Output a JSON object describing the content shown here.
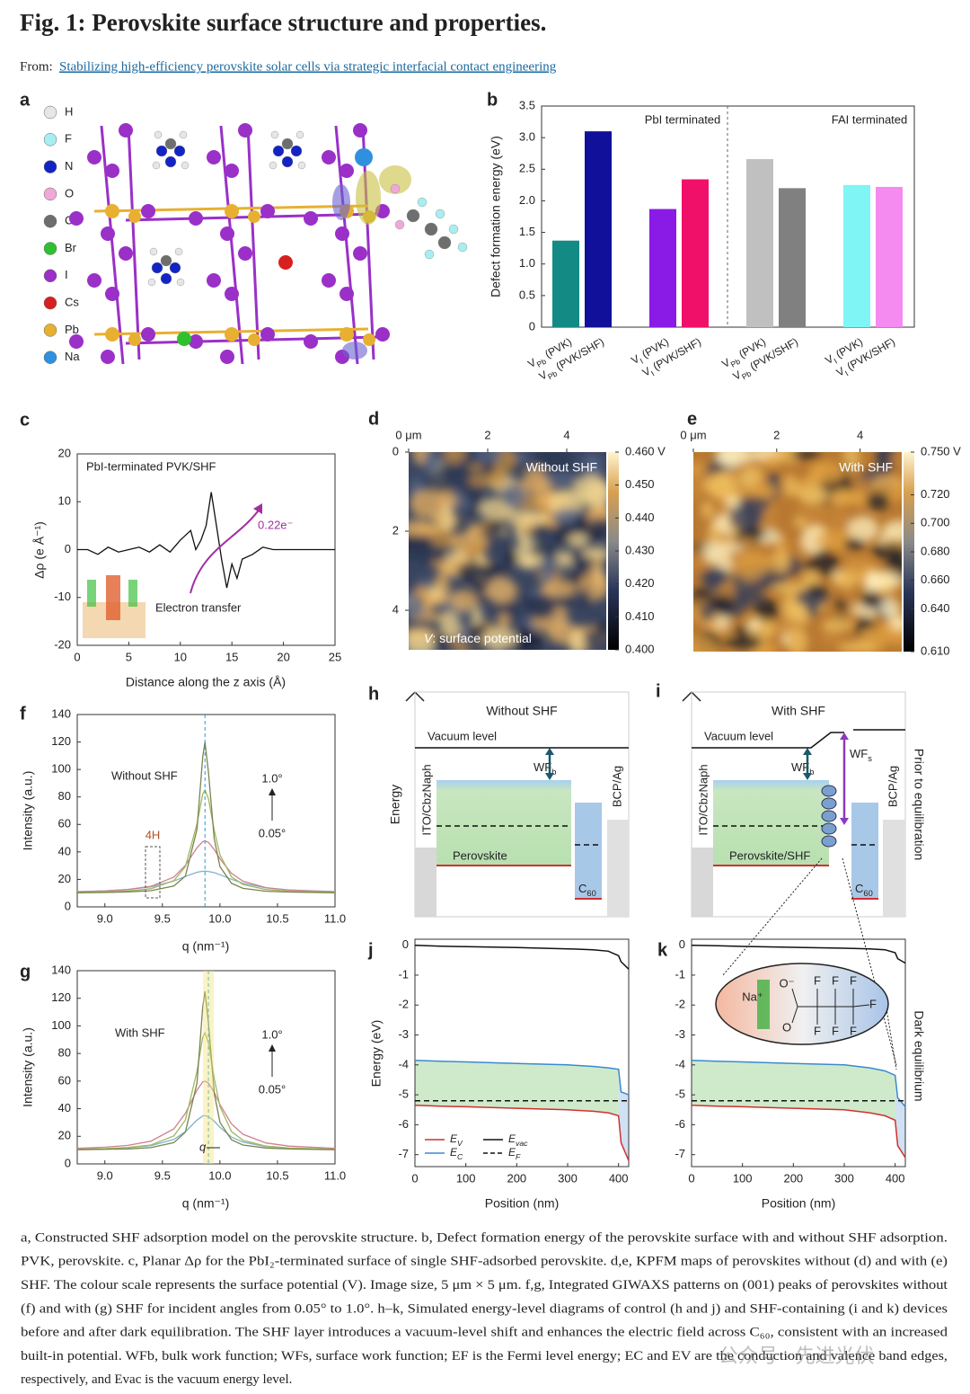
{
  "header": {
    "title": "Fig. 1: Perovskite surface structure and properties.",
    "from": "From:",
    "link": "Stabilizing high-efficiency perovskite solar cells via strategic interfacial contact engineering"
  },
  "panel_a": {
    "label": "a",
    "legend": [
      {
        "name": "H",
        "color": "#e6e6e6"
      },
      {
        "name": "F",
        "color": "#a8eef0"
      },
      {
        "name": "N",
        "color": "#1424c4"
      },
      {
        "name": "O",
        "color": "#f0a8d8"
      },
      {
        "name": "C",
        "color": "#6e6e6e"
      },
      {
        "name": "Br",
        "color": "#2fc02f"
      },
      {
        "name": "I",
        "color": "#9a30c8"
      },
      {
        "name": "Cs",
        "color": "#d82020"
      },
      {
        "name": "Pb",
        "color": "#e8b030"
      },
      {
        "name": "Na",
        "color": "#3090e0"
      }
    ]
  },
  "panel_b": {
    "label": "b",
    "type": "bar",
    "y_label": "Defect formation energy (eV)",
    "ylim": [
      0,
      3.5
    ],
    "yticks": [
      0,
      0.5,
      {
        "value": 1,
        "label": "1.0"
      },
      1.5,
      {
        "value": 2,
        "label": "2.0"
      },
      2.5,
      {
        "value": 3,
        "label": "3.0"
      },
      3.5
    ],
    "groups": [
      "PbI terminated",
      "FAI terminated"
    ],
    "categories": [
      {
        "symbol": "V",
        "sub": "Pb",
        "text": " (PVK)"
      },
      {
        "symbol": "V",
        "sub": "Pb",
        "text": " (PVK/SHF)"
      },
      {
        "symbol": "V",
        "sub": "I",
        "text": " (PVK)"
      },
      {
        "symbol": "V",
        "sub": "I",
        "text": " (PVK/SHF)"
      },
      {
        "symbol": "V",
        "sub": "Pb",
        "text": " (PVK)"
      },
      {
        "symbol": "V",
        "sub": "Pb",
        "text": " (PVK/SHF)"
      },
      {
        "symbol": "V",
        "sub": "I",
        "text": " (PVK)"
      },
      {
        "symbol": "V",
        "sub": "I",
        "text": " (PVK/SHF)"
      }
    ],
    "values": [
      1.37,
      3.1,
      1.87,
      2.34,
      2.66,
      2.2,
      2.25,
      2.22
    ],
    "colors": [
      "#138a84",
      "#10109a",
      "#8a1ae6",
      "#f0106a",
      "#c0c0c0",
      "#808080",
      "#7ff5f5",
      "#f58af0"
    ]
  },
  "panel_c": {
    "label": "c",
    "type": "line",
    "annotation": "PbI-terminated PVK/SHF",
    "charge": "0.22e⁻",
    "process": "Electron transfer",
    "x_label": "Distance along the z axis (Å)",
    "y_label": "Δρ (e Å⁻¹)",
    "xlim": [
      0,
      25
    ],
    "xticks": [
      0,
      5,
      10,
      15,
      20,
      25
    ],
    "ylim": [
      -20,
      20
    ],
    "yticks": [
      -20,
      -10,
      0,
      10,
      20
    ],
    "x": [
      0,
      1,
      2,
      3,
      4,
      5,
      6,
      7,
      8,
      9,
      10,
      11,
      11.5,
      12,
      12.5,
      13,
      13.5,
      14,
      14.5,
      15,
      15.5,
      16,
      17,
      18,
      19,
      20,
      22,
      25
    ],
    "values": [
      0,
      0,
      -1,
      0.5,
      -0.5,
      0,
      0.5,
      -0.5,
      1,
      -0.5,
      2,
      4,
      0,
      2,
      5,
      12,
      5,
      -2,
      -8,
      -3,
      -6,
      -2,
      -1,
      0.5,
      0,
      0,
      0,
      0
    ]
  },
  "panel_d": {
    "label": "d",
    "map_label": "Without SHF",
    "symbol": "V",
    "quantity": ": surface potential",
    "xlim": [
      0,
      5
    ],
    "xticks": [
      {
        "value": 0,
        "label": "0 μm"
      },
      2,
      4
    ],
    "ylim": [
      0,
      5
    ],
    "yticks": [
      0,
      2,
      4
    ],
    "clim": [
      0.4,
      0.46
    ],
    "cticks": [
      {
        "value": 0.46,
        "label": "0.460 V"
      },
      {
        "value": 0.45,
        "label": "0.450"
      },
      {
        "value": 0.44,
        "label": "0.440"
      },
      {
        "value": 0.43,
        "label": "0.430"
      },
      {
        "value": 0.42,
        "label": "0.420"
      },
      {
        "value": 0.41,
        "label": "0.410"
      },
      {
        "value": 0.4,
        "label": "0.400"
      }
    ]
  },
  "panel_e": {
    "label": "e",
    "map_label": "With SHF",
    "xlim": [
      0,
      5
    ],
    "xticks": [
      {
        "value": 0,
        "label": "0 μm"
      },
      2,
      4
    ],
    "clim": [
      0.61,
      0.75
    ],
    "cticks": [
      {
        "value": 0.75,
        "label": "0.750 V"
      },
      {
        "value": 0.72,
        "label": "0.720"
      },
      {
        "value": 0.7,
        "label": "0.700"
      },
      {
        "value": 0.68,
        "label": "0.680"
      },
      {
        "value": 0.66,
        "label": "0.660"
      },
      {
        "value": 0.64,
        "label": "0.640"
      },
      {
        "value": 0.61,
        "label": "0.610"
      }
    ]
  },
  "panel_f": {
    "label": "f",
    "type": "line",
    "sample": "Without SHF",
    "angle_high": "1.0°",
    "angle_low": "0.05°",
    "phase": "4H",
    "x_label": "q (nm⁻¹)",
    "y_label": "Intensity (a.u.)",
    "peak_q": 9.87,
    "xlim": [
      8.76,
      11.0
    ],
    "xticks": [
      {
        "value": 9,
        "label": "9.0"
      },
      9.5,
      {
        "value": 10,
        "label": "10.0"
      },
      10.5,
      {
        "value": 11,
        "label": "11.0"
      }
    ],
    "ylim": [
      0,
      140
    ],
    "yticks": [
      0,
      20,
      40,
      60,
      80,
      100,
      120,
      140
    ],
    "x": [
      8.76,
      9.0,
      9.2,
      9.4,
      9.6,
      9.7,
      9.8,
      9.85,
      9.87,
      9.9,
      9.95,
      10.0,
      10.1,
      10.2,
      10.4,
      10.6,
      11.0
    ],
    "series": [
      {
        "color": "#7fb3d0",
        "values": [
          11.1,
          11.7,
          12.7,
          14.6,
          18.8,
          22.1,
          25.2,
          25.9,
          26,
          25.8,
          24.9,
          23.4,
          20.1,
          17.2,
          13.9,
          12.3,
          11.1
        ]
      },
      {
        "color": "#d08090",
        "values": [
          11,
          11.6,
          12.6,
          14.9,
          21.7,
          30.2,
          43,
          47.5,
          48,
          46.9,
          41.8,
          35,
          24.4,
          18.7,
          14,
          12.2,
          11
        ]
      },
      {
        "color": "#a0b860",
        "values": [
          10.6,
          11,
          11.6,
          13.2,
          19.1,
          29.3,
          60.3,
          82.1,
          85,
          78.8,
          55.8,
          37.9,
          21.9,
          16.3,
          12.6,
          11.4,
          10.6
        ]
      },
      {
        "color": "#7a8450",
        "values": [
          10.3,
          10.5,
          10.9,
          11.8,
          15.2,
          22.4,
          56.4,
          109,
          120,
          98,
          49.6,
          29.3,
          17.2,
          13.5,
          11.4,
          10.8,
          10.3
        ]
      }
    ]
  },
  "panel_g": {
    "label": "g",
    "type": "line",
    "sample": "With SHF",
    "angle_high": "1.0°",
    "angle_low": "0.05°",
    "shift": "q",
    "x_label": "q (nm⁻¹)",
    "y_label": "Intensity (a.u.)",
    "peak_q": 9.9,
    "xlim": [
      8.76,
      11.0
    ],
    "xticks": [
      {
        "value": 9,
        "label": "9.0"
      },
      9.5,
      {
        "value": 10,
        "label": "10.0"
      },
      10.5,
      {
        "value": 11,
        "label": "11.0"
      }
    ],
    "ylim": [
      0,
      140
    ],
    "yticks": [
      0,
      20,
      40,
      60,
      80,
      100,
      120,
      140
    ],
    "x": [
      8.76,
      9.0,
      9.2,
      9.4,
      9.6,
      9.7,
      9.8,
      9.85,
      9.87,
      9.9,
      9.95,
      10.0,
      10.1,
      10.2,
      10.4,
      10.6,
      11.0
    ],
    "series": [
      {
        "color": "#7fb3d0",
        "values": [
          10.6,
          11,
          11.7,
          13.2,
          17.7,
          23.3,
          31.7,
          34.7,
          35,
          34.3,
          31,
          26.5,
          19.5,
          15.8,
          12.6,
          11.4,
          10.6
        ]
      },
      {
        "color": "#d08090",
        "values": [
          11.3,
          12.1,
          13.4,
          16.5,
          25.4,
          36.6,
          53.4,
          59.4,
          60,
          58.6,
          51.9,
          43,
          29,
          21.5,
          15.2,
          12.9,
          11.3
        ]
      },
      {
        "color": "#a0b860",
        "values": [
          10.7,
          11.1,
          11.9,
          13.7,
          20.3,
          31.8,
          67,
          91.8,
          95,
          87.9,
          61.9,
          41.6,
          23.5,
          17.1,
          12.9,
          11.5,
          10.7
        ]
      },
      {
        "color": "#7a8450",
        "values": [
          10.3,
          10.6,
          10.9,
          11.8,
          15.4,
          23,
          58.5,
          113.5,
          125,
          102,
          51.4,
          30.1,
          17.5,
          13.7,
          11.5,
          10.8,
          10.3
        ]
      }
    ]
  },
  "panel_h": {
    "label": "h",
    "title": "Without SHF",
    "vacuum": "Vacuum level",
    "wf": {
      "main": "WF",
      "sub": "b"
    },
    "y_label": "Energy",
    "left": "ITO/CbzNaph",
    "absorber": "Perovskite",
    "etl": {
      "main": "C",
      "sub": "60"
    },
    "right": "BCP/Ag"
  },
  "panel_i": {
    "label": "i",
    "title": "With SHF",
    "vacuum": "Vacuum level",
    "wf_bulk": {
      "main": "WF",
      "sub": "b"
    },
    "wf_surface": {
      "main": "WF",
      "sub": "s"
    },
    "left": "ITO/CbzNaph",
    "absorber": "Perovskite/SHF",
    "etl": {
      "main": "C",
      "sub": "60"
    },
    "right": "BCP/Ag",
    "side": "Prior to equilibration"
  },
  "panel_j": {
    "label": "j",
    "type": "line",
    "x_label": "Position (nm)",
    "y_label": "Energy (eV)",
    "xlim": [
      0,
      420
    ],
    "xticks": [
      0,
      100,
      200,
      300,
      400
    ],
    "ylim": [
      -7.4,
      0.2
    ],
    "yticks": [
      0,
      -1,
      -2,
      -3,
      -4,
      -5,
      -6,
      -7
    ],
    "x": [
      0,
      50,
      100,
      200,
      300,
      350,
      380,
      400,
      405,
      420
    ],
    "series": [
      {
        "name": "E",
        "sub": "V",
        "color": "#d03030",
        "values": [
          -5.35,
          -5.38,
          -5.4,
          -5.45,
          -5.5,
          -5.55,
          -5.6,
          -5.7,
          -6.6,
          -7.2
        ]
      },
      {
        "name": "E",
        "sub": "C",
        "color": "#3a8ad0",
        "values": [
          -3.85,
          -3.88,
          -3.9,
          -3.95,
          -4.0,
          -4.05,
          -4.1,
          -4.15,
          -4.9,
          -5.0
        ]
      },
      {
        "name": "E",
        "sub": "vac",
        "color": "#111111",
        "values": [
          0,
          -0.03,
          -0.05,
          -0.08,
          -0.12,
          -0.15,
          -0.2,
          -0.35,
          -0.55,
          -0.8
        ]
      },
      {
        "name": "E",
        "sub": "F",
        "color": "#111111",
        "dashed": true,
        "values": [
          -5.2,
          -5.2,
          -5.2,
          -5.2,
          -5.2,
          -5.2,
          -5.2,
          -5.2,
          -5.2,
          -5.2
        ]
      }
    ]
  },
  "panel_k": {
    "label": "k",
    "type": "line",
    "x_label": "Position (nm)",
    "side": "Dark equilibrium",
    "xlim": [
      0,
      420
    ],
    "xticks": [
      0,
      100,
      200,
      300,
      400
    ],
    "ylim": [
      -7.4,
      0.2
    ],
    "yticks": [
      0,
      -1,
      -2,
      -3,
      -4,
      -5,
      -6,
      -7
    ],
    "x": [
      0,
      50,
      100,
      200,
      300,
      350,
      380,
      400,
      405,
      420
    ],
    "series": [
      {
        "color": "#d03030",
        "values": [
          -5.35,
          -5.38,
          -5.4,
          -5.45,
          -5.5,
          -5.6,
          -5.7,
          -5.85,
          -6.7,
          -7.1
        ]
      },
      {
        "color": "#3a8ad0",
        "values": [
          -3.85,
          -3.88,
          -3.9,
          -3.95,
          -4.0,
          -4.1,
          -4.2,
          -4.35,
          -5.1,
          -5.4
        ]
      },
      {
        "color": "#111111",
        "values": [
          0,
          -0.02,
          -0.04,
          -0.07,
          -0.1,
          -0.12,
          -0.15,
          -0.25,
          -0.45,
          -0.6
        ]
      },
      {
        "color": "#111111",
        "dashed": true,
        "values": [
          -5.2,
          -5.2,
          -5.2,
          -5.2,
          -5.2,
          -5.2,
          -5.2,
          -5.2,
          -5.2,
          -5.2
        ]
      }
    ],
    "inset": {
      "cation": "Na⁺",
      "anion": "O⁻",
      "oxygen": "O",
      "fluorines": [
        "F",
        "F",
        "F",
        "F",
        "F",
        "F",
        "F"
      ]
    }
  },
  "caption": [
    "a, Constructed SHF adsorption model on the perovskite structure. b, Defect formation energy of the perovskite surface with and without SHF adsorption.",
    "PVK, perovskite. c, Planar Δρ for the PbI₂-terminated surface of single SHF-adsorbed perovskite. d,e, KPFM maps of perovskites without (d) and with (e)",
    "SHF. The colour scale represents the surface potential (V). Image size, 5 μm × 5 μm. f,g, Integrated GIWAXS patterns on (001) peaks of perovskites without",
    "(f) and with (g) SHF for incident angles from 0.05° to 1.0°. h–k, Simulated energy-level diagrams of control (h and j) and SHF-containing (i and k) devices",
    "before and after dark equilibration. The SHF layer introduces a vacuum-level shift and enhances the electric field across C₆₀, consistent with an increased",
    "built-in potential. WFb, bulk work function; WFs, surface work function; EF is the Fermi level energy; EC and EV are the conduction and valence band edges,",
    "respectively, and Evac is the vacuum energy level."
  ],
  "watermark": "公众号 · 先进光伏"
}
